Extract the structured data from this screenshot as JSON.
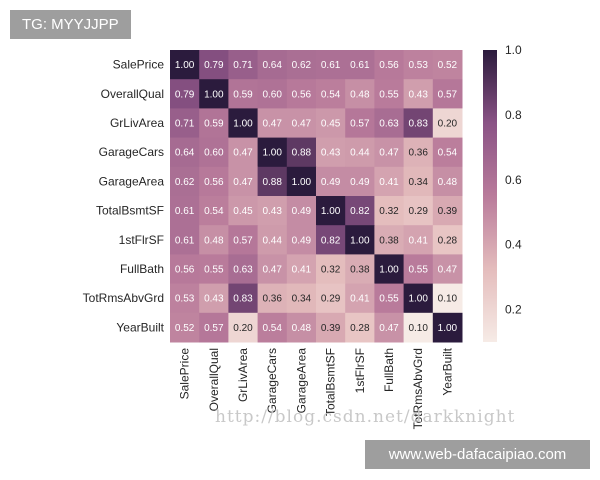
{
  "watermarks": {
    "tag": "TG: MYYJJPP",
    "site": "www.web-dafacaipiao.com",
    "faint": "http://blog.csdn.net/darkknight"
  },
  "chart_data": {
    "type": "heatmap",
    "labels": [
      "SalePrice",
      "OverallQual",
      "GrLivArea",
      "GarageCars",
      "GarageArea",
      "TotalBsmtSF",
      "1stFlrSF",
      "FullBath",
      "TotRmsAbvGrd",
      "YearBuilt"
    ],
    "values": [
      [
        1.0,
        0.79,
        0.71,
        0.64,
        0.62,
        0.61,
        0.61,
        0.56,
        0.53,
        0.52
      ],
      [
        0.79,
        1.0,
        0.59,
        0.6,
        0.56,
        0.54,
        0.48,
        0.55,
        0.43,
        0.57
      ],
      [
        0.71,
        0.59,
        1.0,
        0.47,
        0.47,
        0.45,
        0.57,
        0.63,
        0.83,
        0.2
      ],
      [
        0.64,
        0.6,
        0.47,
        1.0,
        0.88,
        0.43,
        0.44,
        0.47,
        0.36,
        0.54
      ],
      [
        0.62,
        0.56,
        0.47,
        0.88,
        1.0,
        0.49,
        0.49,
        0.41,
        0.34,
        0.48
      ],
      [
        0.61,
        0.54,
        0.45,
        0.43,
        0.49,
        1.0,
        0.82,
        0.32,
        0.29,
        0.39
      ],
      [
        0.61,
        0.48,
        0.57,
        0.44,
        0.49,
        0.82,
        1.0,
        0.38,
        0.41,
        0.28
      ],
      [
        0.56,
        0.55,
        0.63,
        0.47,
        0.41,
        0.32,
        0.38,
        1.0,
        0.55,
        0.47
      ],
      [
        0.53,
        0.43,
        0.83,
        0.36,
        0.34,
        0.29,
        0.41,
        0.55,
        1.0,
        0.1
      ],
      [
        0.52,
        0.57,
        0.2,
        0.54,
        0.48,
        0.39,
        0.28,
        0.47,
        0.1,
        1.0
      ]
    ],
    "colorbar": {
      "range": [
        0.1,
        1.0
      ],
      "ticks": [
        "0.2",
        "0.4",
        "0.6",
        "0.8",
        "1.0"
      ]
    },
    "colormap": [
      "#f6ebe6",
      "#e4bcbc",
      "#b97b9b",
      "#8a5385",
      "#2b1b3d"
    ]
  }
}
